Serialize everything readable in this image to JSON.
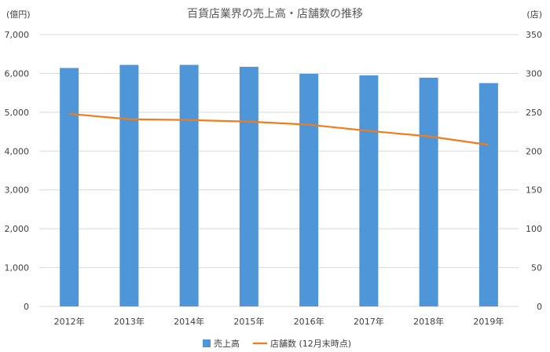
{
  "chart_data": {
    "type": "bar",
    "title": "百貨店業界の売上高・店舗数の推移",
    "y_left_unit": "(億円)",
    "y_right_unit": "(店)",
    "categories": [
      "2012年",
      "2013年",
      "2014年",
      "2015年",
      "2016年",
      "2017年",
      "2018年",
      "2019年"
    ],
    "ylim_left": [
      0,
      7000
    ],
    "ylim_right": [
      0,
      350
    ],
    "yticks_left": [
      "0",
      "1,000",
      "2,000",
      "3,000",
      "4,000",
      "5,000",
      "6,000",
      "7,000"
    ],
    "yticks_right": [
      "0",
      "50",
      "100",
      "150",
      "200",
      "250",
      "300",
      "350"
    ],
    "series": [
      {
        "name": "売上高",
        "type": "bar",
        "axis": "left",
        "color": "#4f96d8",
        "values": [
          6140,
          6220,
          6220,
          6170,
          5990,
          5950,
          5890,
          5750
        ]
      },
      {
        "name": "店舗数 (12月末時点)",
        "type": "line",
        "axis": "right",
        "color": "#f07c1b",
        "values": [
          248,
          241,
          240,
          238,
          234,
          226,
          219,
          208
        ]
      }
    ],
    "grid": true,
    "legend": "bottom-center"
  }
}
